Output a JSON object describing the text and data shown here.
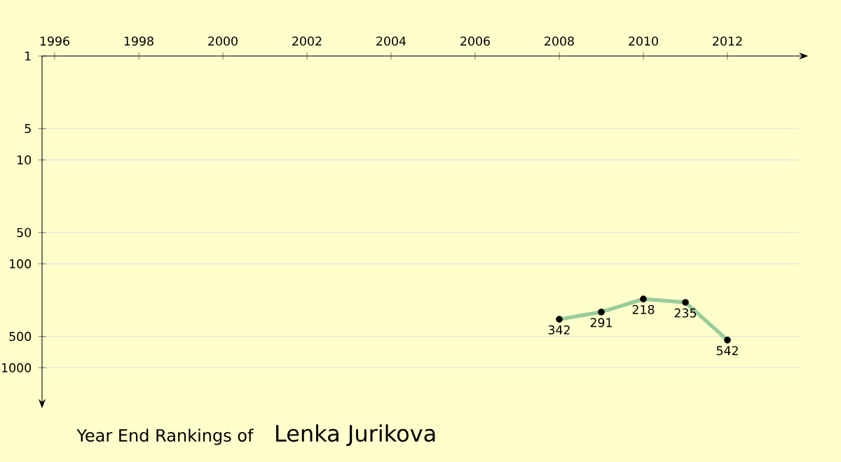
{
  "chart_data": {
    "type": "line",
    "title": "Year End Rankings of",
    "subtitle": "Lenka Jurikova",
    "x": [
      2008,
      2009,
      2010,
      2011,
      2012
    ],
    "series": [
      {
        "color": "#99cc99",
        "values": [
          342,
          291,
          218,
          235,
          542
        ]
      }
    ],
    "xlim": [
      1995.7,
      2013.7
    ],
    "xticks": [
      1996,
      1998,
      2000,
      2002,
      2004,
      2006,
      2008,
      2010,
      2012
    ],
    "ylim": [
      2000,
      1
    ],
    "yticks": [
      1,
      5,
      10,
      50,
      100,
      500,
      1000
    ],
    "log": "y",
    "grid": "y",
    "marker": "circle",
    "line_style": "solid",
    "data_labels": true
  }
}
